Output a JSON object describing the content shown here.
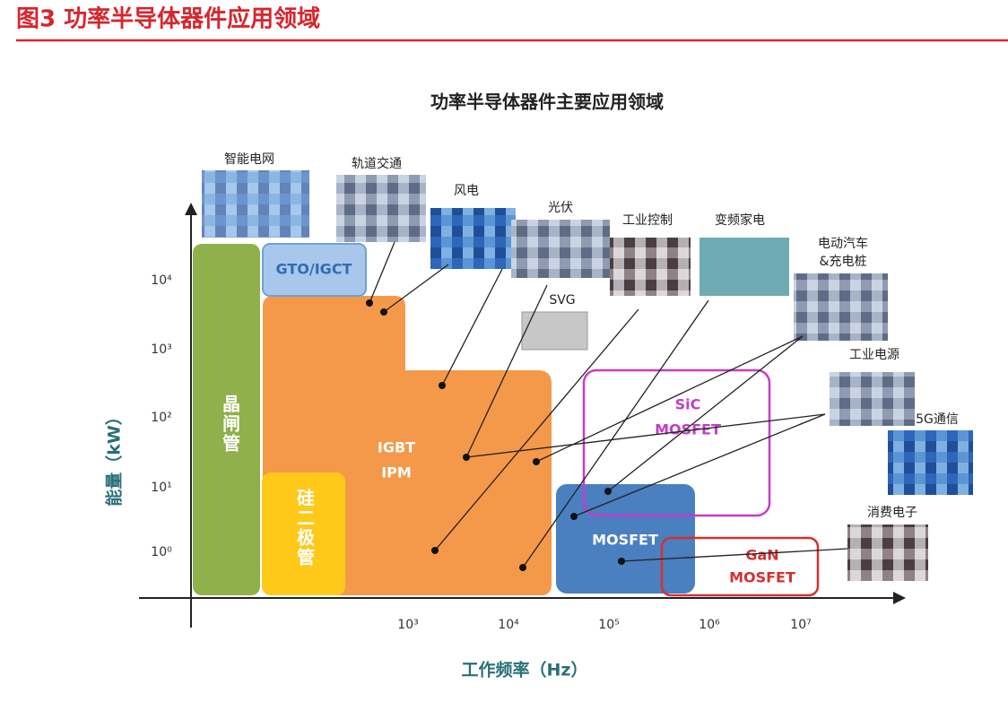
{
  "header": {
    "title": "图3  功率半导体器件应用领域"
  },
  "diagram": {
    "title": "功率半导体器件主要应用领域",
    "y_axis_label": "能量（kW）",
    "x_axis_label": "工作频率（Hz）",
    "y_ticks": [
      "10⁴",
      "10³",
      "10²",
      "10¹",
      "10⁰"
    ],
    "x_ticks": [
      "10³",
      "10⁴",
      "10⁵",
      "10⁶",
      "10⁷"
    ],
    "regions": {
      "thyristor": "晶闸管",
      "gto": "GTO/IGCT",
      "igbt": [
        "IGBT",
        "IPM"
      ],
      "diode": "硅二极管",
      "mosfet": "MOSFET",
      "sic": [
        "SiC",
        "MOSFET"
      ],
      "gan": [
        "GaN",
        "MOSFET"
      ]
    },
    "applications": {
      "smart_grid": "智能电网",
      "rail": "轨道交通",
      "wind": "风电",
      "pv": "光伏",
      "industrial_control": "工业控制",
      "appliance": "变频家电",
      "ev": [
        "电动汽车",
        "&充电桩"
      ],
      "svg": "SVG",
      "industrial_power": "工业电源",
      "5g": "5G通信",
      "consumer": "消费电子"
    }
  }
}
